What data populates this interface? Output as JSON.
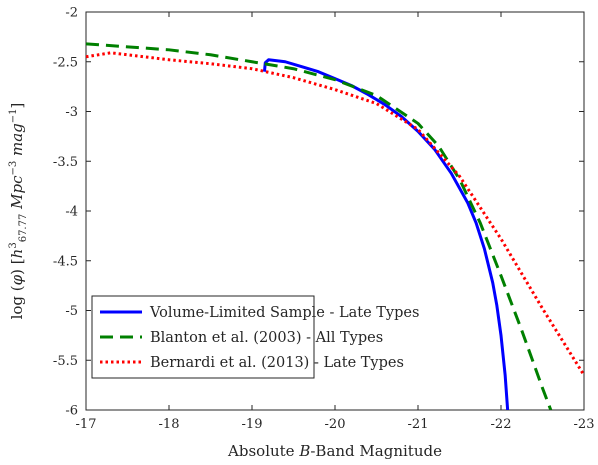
{
  "chart_data": {
    "type": "line",
    "title": "",
    "xlabel": "Absolute B-Band Magnitude",
    "ylabel": "log (φ) [h³₆₇.₇₇ Mpc⁻³ mag⁻¹]",
    "xlim": [
      -17,
      -23
    ],
    "ylim": [
      -6,
      -2
    ],
    "x_reversed": true,
    "x_ticks": [
      -17,
      -18,
      -19,
      -20,
      -21,
      -22,
      -23
    ],
    "y_ticks": [
      -2,
      -2.5,
      -3,
      -3.5,
      -4,
      -4.5,
      -5,
      -5.5,
      -6
    ],
    "grid": false,
    "legend_position": "bottom-left",
    "series": [
      {
        "name": "Volume-Limited Sample - Late Types",
        "color": "#0000ff",
        "style": "solid",
        "x": [
          -19.15,
          -19.16,
          -19.2,
          -19.4,
          -19.6,
          -19.8,
          -20.0,
          -20.2,
          -20.4,
          -20.6,
          -20.8,
          -21.0,
          -21.2,
          -21.4,
          -21.6,
          -21.7,
          -21.8,
          -21.9,
          -21.95,
          -22.0,
          -22.05,
          -22.08
        ],
        "y": [
          -2.6,
          -2.51,
          -2.48,
          -2.5,
          -2.55,
          -2.6,
          -2.67,
          -2.74,
          -2.83,
          -2.93,
          -3.05,
          -3.2,
          -3.38,
          -3.62,
          -3.92,
          -4.12,
          -4.38,
          -4.72,
          -4.95,
          -5.25,
          -5.65,
          -6.0
        ]
      },
      {
        "name": "Blanton et al. (2003) - All Types",
        "color": "#008000",
        "style": "dashed",
        "x": [
          -17.0,
          -17.5,
          -18.0,
          -18.5,
          -19.0,
          -19.5,
          -20.0,
          -20.5,
          -21.0,
          -21.25,
          -21.5,
          -21.75,
          -22.0,
          -22.25,
          -22.5,
          -22.6
        ],
        "y": [
          -2.32,
          -2.35,
          -2.38,
          -2.43,
          -2.5,
          -2.57,
          -2.68,
          -2.84,
          -3.12,
          -3.35,
          -3.68,
          -4.12,
          -4.65,
          -5.2,
          -5.78,
          -6.0
        ]
      },
      {
        "name": "Bernardi et al. (2013) - Late Types",
        "color": "#ff0000",
        "style": "dotted",
        "x": [
          -17.0,
          -17.3,
          -17.6,
          -18.0,
          -18.5,
          -19.0,
          -19.5,
          -20.0,
          -20.5,
          -21.0,
          -21.5,
          -22.0,
          -22.5,
          -23.0
        ],
        "y": [
          -2.45,
          -2.41,
          -2.44,
          -2.48,
          -2.52,
          -2.57,
          -2.66,
          -2.78,
          -2.92,
          -3.18,
          -3.65,
          -4.28,
          -4.98,
          -5.65
        ]
      }
    ]
  }
}
